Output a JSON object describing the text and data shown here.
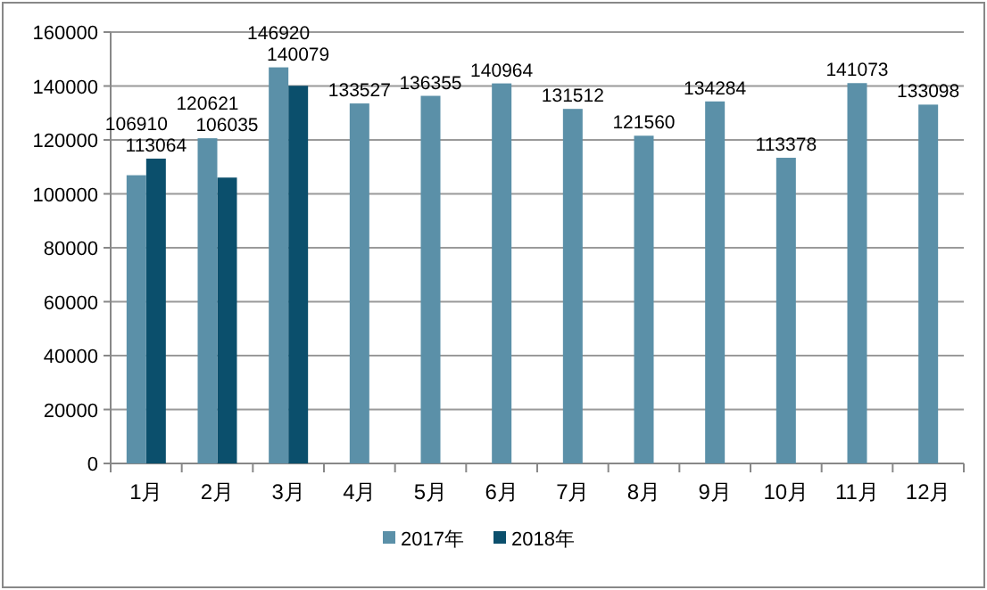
{
  "chart_data": {
    "type": "bar",
    "categories": [
      "1月",
      "2月",
      "3月",
      "4月",
      "5月",
      "6月",
      "7月",
      "8月",
      "9月",
      "10月",
      "11月",
      "12月"
    ],
    "series": [
      {
        "name": "2017年",
        "color": "#5b90a8",
        "values": [
          106910,
          120621,
          146920,
          133527,
          136355,
          140964,
          131512,
          121560,
          134284,
          113378,
          141073,
          133098
        ]
      },
      {
        "name": "2018年",
        "color": "#0b4f6c",
        "values": [
          113064,
          106035,
          140079,
          null,
          null,
          null,
          null,
          null,
          null,
          null,
          null,
          null
        ]
      }
    ],
    "ylim": [
      0,
      160000
    ],
    "yticks": [
      0,
      20000,
      40000,
      60000,
      80000,
      100000,
      120000,
      140000,
      160000
    ],
    "grid": "y",
    "legend": "bottom",
    "data_labels": true
  }
}
